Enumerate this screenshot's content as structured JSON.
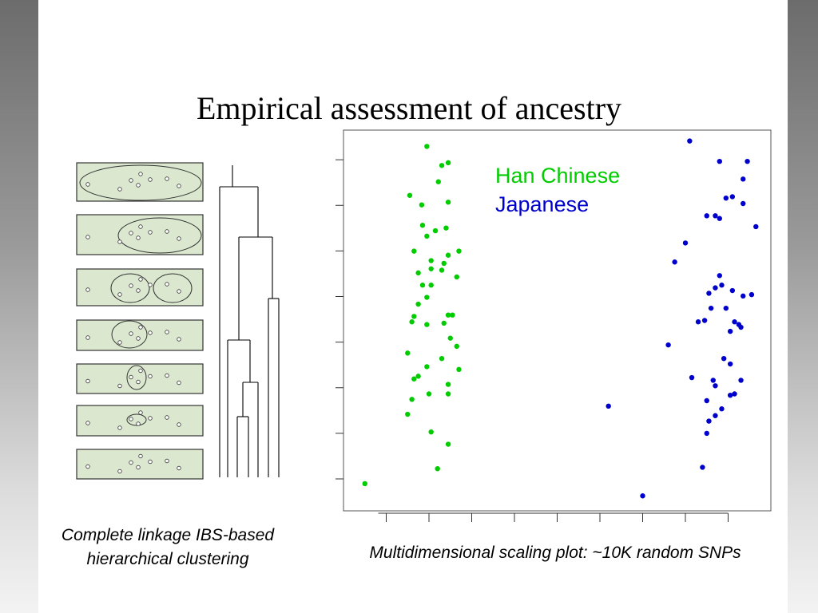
{
  "slide": {
    "title": "Empirical assessment of ancestry",
    "caption_left": "Complete linkage IBS-based hierarchical clustering",
    "caption_right": "Multidimensional scaling plot: ~10K random SNPs"
  },
  "colors": {
    "han": "#00cc00",
    "japanese": "#0000cc",
    "panel_fill": "#dbe8cf"
  },
  "chart_data": [
    {
      "type": "diagram",
      "kind": "dendrogram-with-cluster-panels",
      "panels": 7,
      "points_per_panel": 8
    },
    {
      "type": "scatter",
      "title": "",
      "xlabel": "",
      "ylabel": "",
      "xlim": [
        0,
        10
      ],
      "ylim": [
        0,
        14
      ],
      "x_ticks": [
        1,
        2,
        3,
        4,
        5,
        6,
        7,
        8,
        9
      ],
      "y_ticks": [
        1,
        2,
        3,
        4,
        5,
        6,
        7,
        8
      ],
      "series": [
        {
          "name": "Han Chinese",
          "color": "#00cc00",
          "points": [
            [
              0.5,
              1
            ],
            [
              1.95,
              13.4
            ],
            [
              2.45,
              12.8
            ],
            [
              2.3,
              12.7
            ],
            [
              2.22,
              12.1
            ],
            [
              1.55,
              11.6
            ],
            [
              1.83,
              11.25
            ],
            [
              2.45,
              11.35
            ],
            [
              1.85,
              10.5
            ],
            [
              2.4,
              10.4
            ],
            [
              2.15,
              10.3
            ],
            [
              1.95,
              10.1
            ],
            [
              1.65,
              9.55
            ],
            [
              2.7,
              9.55
            ],
            [
              2.45,
              9.4
            ],
            [
              2.05,
              9.2
            ],
            [
              2.35,
              9.1
            ],
            [
              2.05,
              8.9
            ],
            [
              2.3,
              8.85
            ],
            [
              1.75,
              8.75
            ],
            [
              2.65,
              8.6
            ],
            [
              1.85,
              8.3
            ],
            [
              2.05,
              8.3
            ],
            [
              1.95,
              7.85
            ],
            [
              1.75,
              7.6
            ],
            [
              1.65,
              7.15
            ],
            [
              1.6,
              6.95
            ],
            [
              2.45,
              7.2
            ],
            [
              2.55,
              7.2
            ],
            [
              2.35,
              6.9
            ],
            [
              1.95,
              6.85
            ],
            [
              2.5,
              6.35
            ],
            [
              2.65,
              6.05
            ],
            [
              1.5,
              5.8
            ],
            [
              2.3,
              5.6
            ],
            [
              1.95,
              5.3
            ],
            [
              2.7,
              5.2
            ],
            [
              1.75,
              4.95
            ],
            [
              1.65,
              4.85
            ],
            [
              2.45,
              4.65
            ],
            [
              2.0,
              4.3
            ],
            [
              2.45,
              4.3
            ],
            [
              1.6,
              4.1
            ],
            [
              1.5,
              3.55
            ],
            [
              2.05,
              2.9
            ],
            [
              2.45,
              2.45
            ],
            [
              2.2,
              1.55
            ]
          ]
        },
        {
          "name": "Japanese",
          "color": "#0000cc",
          "points": [
            [
              8.1,
              13.6
            ],
            [
              8.8,
              12.85
            ],
            [
              9.45,
              12.85
            ],
            [
              9.35,
              12.2
            ],
            [
              9.1,
              11.55
            ],
            [
              8.95,
              11.5
            ],
            [
              9.35,
              11.3
            ],
            [
              8.5,
              10.85
            ],
            [
              8.7,
              10.85
            ],
            [
              8.8,
              10.75
            ],
            [
              9.65,
              10.45
            ],
            [
              8.0,
              9.85
            ],
            [
              7.75,
              9.15
            ],
            [
              8.8,
              8.65
            ],
            [
              8.7,
              8.2
            ],
            [
              8.85,
              8.3
            ],
            [
              8.55,
              8.0
            ],
            [
              9.1,
              8.1
            ],
            [
              9.35,
              7.9
            ],
            [
              9.55,
              7.95
            ],
            [
              8.95,
              7.45
            ],
            [
              8.6,
              7.45
            ],
            [
              8.45,
              7.0
            ],
            [
              8.3,
              6.95
            ],
            [
              9.15,
              6.95
            ],
            [
              9.3,
              6.75
            ],
            [
              9.25,
              6.85
            ],
            [
              9.05,
              6.6
            ],
            [
              7.6,
              6.1
            ],
            [
              8.9,
              5.6
            ],
            [
              9.05,
              5.4
            ],
            [
              8.15,
              4.9
            ],
            [
              8.65,
              4.8
            ],
            [
              9.3,
              4.8
            ],
            [
              8.7,
              4.6
            ],
            [
              9.15,
              4.3
            ],
            [
              9.05,
              4.25
            ],
            [
              8.5,
              4.05
            ],
            [
              8.85,
              3.75
            ],
            [
              8.7,
              3.5
            ],
            [
              8.55,
              3.3
            ],
            [
              6.2,
              3.85
            ],
            [
              8.5,
              2.85
            ],
            [
              8.4,
              1.6
            ],
            [
              7.0,
              0.55
            ]
          ]
        }
      ]
    }
  ]
}
